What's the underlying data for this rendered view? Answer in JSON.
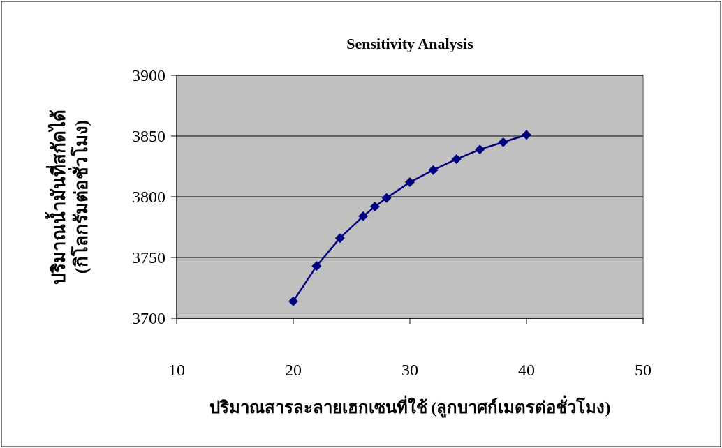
{
  "chart_data": {
    "type": "line",
    "title": "Sensitivity Analysis",
    "xlabel": "ปริมาณสารละลายเฮกเซนที่ใช้ (ลูกบาศก์เมตรต่อชั่วโมง)",
    "ylabel": "ปริมาณน้ำมันที่สกัดได้\n(กิโลกรัมต่อชั่วโมง)",
    "x": [
      20,
      22,
      24,
      26,
      27,
      28,
      30,
      32,
      34,
      36,
      38,
      40
    ],
    "series": [
      {
        "color": "#000080",
        "values": [
          3714,
          3743,
          3766,
          3784,
          3792,
          3799,
          3812,
          3822,
          3831,
          3839,
          3845,
          3851
        ]
      }
    ],
    "xlim": [
      10,
      50
    ],
    "xticks": [
      10,
      20,
      30,
      40,
      50
    ],
    "ylim": [
      3700,
      3900
    ],
    "yticks": [
      3700,
      3750,
      3800,
      3850,
      3900
    ],
    "grid": "y",
    "marker": "diamond",
    "line_style": "solid"
  }
}
